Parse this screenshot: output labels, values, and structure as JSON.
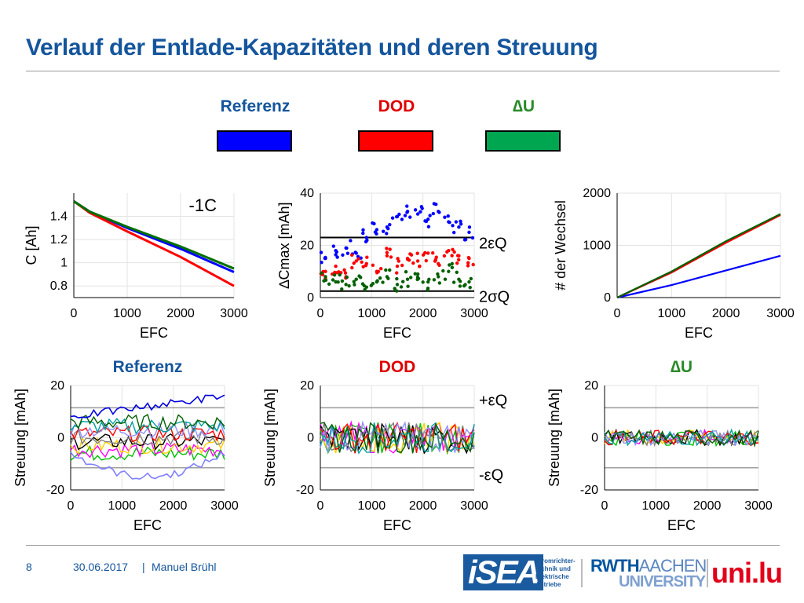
{
  "header": {
    "title": "Verlauf der Entlade-Kapazitäten und deren Streuung"
  },
  "legend": [
    {
      "label": "Referenz",
      "color": "#0000ff",
      "text_color": "#14559c"
    },
    {
      "label": "DOD",
      "color": "#ff0000",
      "text_color": "#e00000"
    },
    {
      "label": "∆U",
      "color": "#00a650",
      "text_color": "#2a8a2a"
    }
  ],
  "footer": {
    "page": "8",
    "date": "30.06.2017",
    "separator": "|",
    "author": "Manuel Brühl"
  },
  "logos": {
    "isea": "iSEA",
    "isea_caption": [
      "Stromrichter-",
      "technik und",
      "Elektrische",
      "Antriebe"
    ],
    "rwth_1": "RWTH",
    "rwth_2": "AACHEN",
    "rwth_3": "UNIVERSITY",
    "uni": "uni.lu"
  },
  "chart_data": [
    {
      "id": "capacity",
      "type": "line",
      "xlabel": "EFC",
      "ylabel": "C [Ah]",
      "annotation": "-1C",
      "xlim": [
        0,
        3000
      ],
      "ylim": [
        0.7,
        1.6
      ],
      "xticks": [
        0,
        1000,
        2000,
        3000
      ],
      "yticks": [
        0.8,
        1,
        1.2,
        1.4
      ],
      "series": [
        {
          "color": "#0000ff",
          "x": [
            0,
            300,
            1000,
            2000,
            3000
          ],
          "y": [
            1.53,
            1.44,
            1.3,
            1.12,
            0.92
          ]
        },
        {
          "color": "#ff0000",
          "x": [
            0,
            300,
            1000,
            2000,
            3000
          ],
          "y": [
            1.53,
            1.43,
            1.27,
            1.05,
            0.8
          ]
        },
        {
          "color": "#007000",
          "x": [
            0,
            300,
            1000,
            2000,
            3000
          ],
          "y": [
            1.53,
            1.44,
            1.31,
            1.14,
            0.95
          ]
        }
      ]
    },
    {
      "id": "delta_c",
      "type": "scatter",
      "xlabel": "EFC",
      "ylabel": "∆Cmax [mAh]",
      "xlim": [
        0,
        3000
      ],
      "ylim": [
        0,
        40
      ],
      "xticks": [
        0,
        1000,
        2000,
        3000
      ],
      "yticks": [
        0,
        20,
        40
      ],
      "hlines": [
        {
          "y": 23,
          "label": "2εQ"
        },
        {
          "y": 2.5,
          "label": "2σQ"
        }
      ],
      "series": [
        {
          "color": "#0000ff",
          "x": [
            100,
            300,
            500,
            700,
            900,
            1100,
            1300,
            1500,
            1700,
            1900,
            2100,
            2300,
            2500,
            2700,
            2900
          ],
          "y": [
            15,
            18,
            19,
            17,
            23,
            26,
            27,
            31,
            33,
            32,
            30,
            33,
            29,
            27,
            25
          ]
        },
        {
          "color": "#ff0000",
          "x": [
            100,
            300,
            500,
            700,
            900,
            1100,
            1300,
            1500,
            1700,
            1900,
            2100,
            2300,
            2500,
            2700,
            2900
          ],
          "y": [
            10,
            12,
            8,
            14,
            13,
            10,
            16,
            12,
            15,
            14,
            17,
            13,
            18,
            16,
            15
          ]
        },
        {
          "color": "#006000",
          "x": [
            100,
            300,
            500,
            700,
            900,
            1100,
            1300,
            1500,
            1700,
            1900,
            2100,
            2300,
            2500,
            2700,
            2900
          ],
          "y": [
            8,
            6,
            5,
            7,
            4,
            6,
            8,
            5,
            7,
            9,
            6,
            8,
            10,
            7,
            6
          ]
        }
      ]
    },
    {
      "id": "switches",
      "type": "line",
      "xlabel": "EFC",
      "ylabel": "# der Wechsel",
      "xlim": [
        0,
        3000
      ],
      "ylim": [
        0,
        2000
      ],
      "xticks": [
        0,
        1000,
        2000,
        3000
      ],
      "yticks": [
        0,
        1000,
        2000
      ],
      "series": [
        {
          "color": "#0000ff",
          "x": [
            0,
            1000,
            2000,
            3000
          ],
          "y": [
            0,
            240,
            520,
            800
          ]
        },
        {
          "color": "#ff0000",
          "x": [
            0,
            1000,
            2000,
            3000
          ],
          "y": [
            0,
            480,
            1050,
            1580
          ]
        },
        {
          "color": "#006000",
          "x": [
            0,
            1000,
            2000,
            3000
          ],
          "y": [
            0,
            500,
            1080,
            1600
          ]
        }
      ]
    },
    {
      "id": "spread_referenz",
      "type": "line",
      "title": "Referenz",
      "xlabel": "EFC",
      "ylabel": "Streuung [mAh]",
      "xlim": [
        0,
        3000
      ],
      "ylim": [
        -20,
        20
      ],
      "xticks": [
        0,
        1000,
        2000,
        3000
      ],
      "yticks": [
        -20,
        0,
        20
      ],
      "hlines": [
        {
          "y": 11.5
        },
        {
          "y": -11.5
        }
      ]
    },
    {
      "id": "spread_dod",
      "type": "line",
      "title": "DOD",
      "xlabel": "EFC",
      "ylabel": "Streuung [mAh]",
      "xlim": [
        0,
        3000
      ],
      "ylim": [
        -20,
        20
      ],
      "xticks": [
        0,
        1000,
        2000,
        3000
      ],
      "yticks": [
        -20,
        0,
        20
      ],
      "hlines": [
        {
          "y": 11.5,
          "label": "+εQ"
        },
        {
          "y": -11.5,
          "label": "-εQ"
        }
      ]
    },
    {
      "id": "spread_du",
      "type": "line",
      "title": "∆U",
      "xlabel": "EFC",
      "ylabel": "Streuung [mAh]",
      "xlim": [
        0,
        3000
      ],
      "ylim": [
        -20,
        20
      ],
      "xticks": [
        0,
        1000,
        2000,
        3000
      ],
      "yticks": [
        -20,
        0,
        20
      ],
      "hlines": [
        {
          "y": 11.5
        },
        {
          "y": -11.5
        }
      ]
    }
  ]
}
